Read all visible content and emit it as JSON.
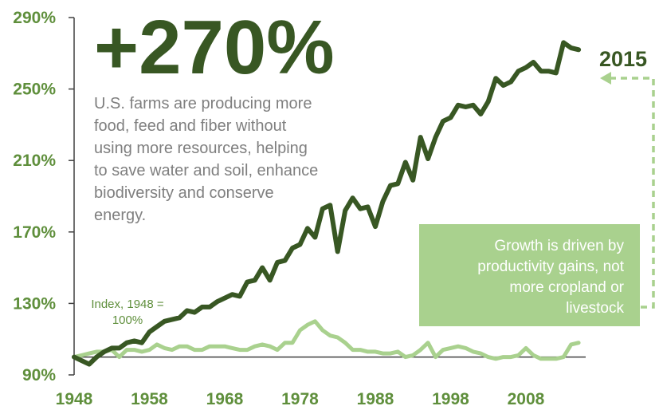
{
  "chart_data": {
    "type": "line",
    "title": "",
    "headline": "+270%",
    "description_lines": [
      "U.S. farms are producing more",
      "food, feed and fiber without",
      "using more resources, helping",
      "to save water and soil, enhance",
      "biodiversity and conserve",
      "energy."
    ],
    "end_label": "2015",
    "baseline_note_lines": [
      "Index, 1948 =",
      "100%"
    ],
    "callout_lines": [
      "Growth is driven by",
      "productivity gains, not",
      "more cropland or",
      "livestock"
    ],
    "x_ticks": [
      "1948",
      "1958",
      "1968",
      "1978",
      "1988",
      "1998",
      "2008"
    ],
    "y_ticks": [
      "90%",
      "130%",
      "170%",
      "210%",
      "250%",
      "290%"
    ],
    "xlim": [
      1948,
      2017
    ],
    "ylim": [
      90,
      290
    ],
    "baseline_value": 100,
    "x": [
      1948,
      1949,
      1950,
      1951,
      1952,
      1953,
      1954,
      1955,
      1956,
      1957,
      1958,
      1959,
      1960,
      1961,
      1962,
      1963,
      1964,
      1965,
      1966,
      1967,
      1968,
      1969,
      1970,
      1971,
      1972,
      1973,
      1974,
      1975,
      1976,
      1977,
      1978,
      1979,
      1980,
      1981,
      1982,
      1983,
      1984,
      1985,
      1986,
      1987,
      1988,
      1989,
      1990,
      1991,
      1992,
      1993,
      1994,
      1995,
      1996,
      1997,
      1998,
      1999,
      2000,
      2001,
      2002,
      2003,
      2004,
      2005,
      2006,
      2007,
      2008,
      2009,
      2010,
      2011,
      2012,
      2013,
      2014,
      2015
    ],
    "series": [
      {
        "name": "",
        "color": "#385723",
        "values": [
          100,
          98,
          96,
          100,
          103,
          105,
          105,
          108,
          109,
          108,
          114,
          117,
          120,
          121,
          122,
          126,
          125,
          128,
          128,
          131,
          133,
          135,
          134,
          142,
          143,
          150,
          143,
          153,
          154,
          161,
          163,
          172,
          167,
          183,
          185,
          159,
          182,
          189,
          183,
          184,
          173,
          187,
          196,
          197,
          209,
          199,
          223,
          211,
          223,
          232,
          234,
          241,
          240,
          241,
          236,
          243,
          256,
          252,
          254,
          260,
          262,
          265,
          260,
          260,
          259,
          276,
          273,
          272
        ]
      },
      {
        "name": "",
        "color": "#a9d18e",
        "values": [
          100,
          101,
          102,
          103,
          103,
          104,
          100,
          104,
          104,
          103,
          104,
          107,
          105,
          104,
          106,
          106,
          104,
          104,
          106,
          106,
          106,
          105,
          104,
          104,
          106,
          107,
          106,
          104,
          108,
          108,
          115,
          118,
          120,
          115,
          112,
          111,
          108,
          104,
          104,
          103,
          103,
          102,
          102,
          103,
          100,
          101,
          104,
          108,
          100,
          104,
          105,
          106,
          105,
          103,
          102,
          100,
          99,
          100,
          100,
          101,
          105,
          101,
          99,
          99,
          99,
          100,
          107,
          108
        ]
      }
    ]
  }
}
